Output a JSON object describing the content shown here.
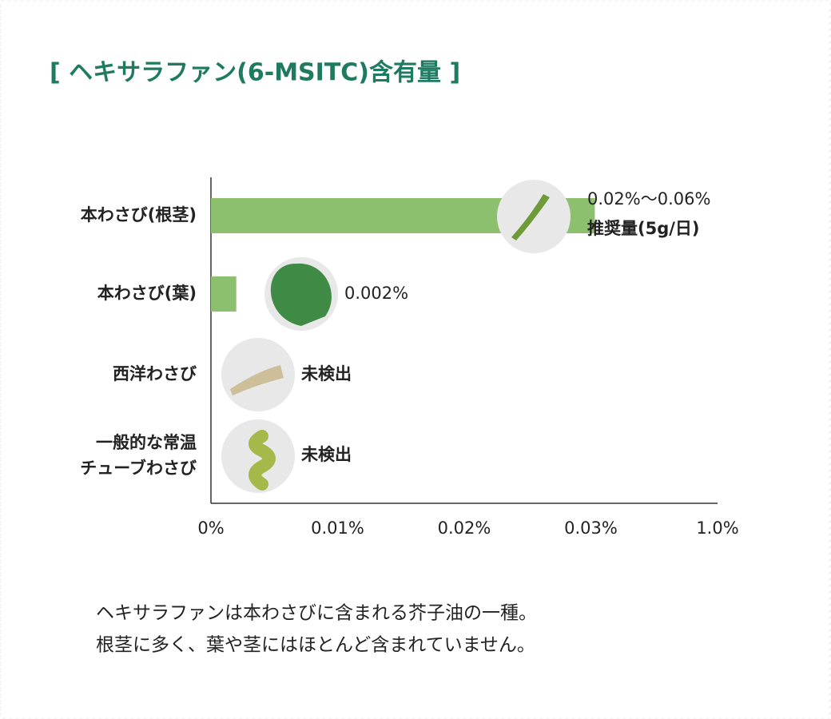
{
  "chart_data": {
    "type": "bar",
    "orientation": "horizontal",
    "title": "[ ヘキサラファン(6-MSITC)含有量 ]",
    "categories": [
      "本わさび(根茎)",
      "本わさび(葉)",
      "西洋わさび",
      [
        "一般的な常温",
        "チューブわさび"
      ]
    ],
    "values": [
      0.06,
      0.002,
      0,
      0
    ],
    "value_labels": [
      [
        "0.02%〜0.06%",
        "推奨量(5g/日)"
      ],
      "0.002%",
      "未検出",
      "未検出"
    ],
    "color": "#8cbf6e",
    "xlim": [
      0,
      1.0
    ],
    "xticks": [
      {
        "value": 0,
        "label": "0%"
      },
      {
        "value": 0.01,
        "label": "0.01%"
      },
      {
        "value": 0.02,
        "label": "0.02%"
      },
      {
        "value": 0.03,
        "label": "0.03%"
      },
      {
        "value": 1.0,
        "label": "1.0%"
      }
    ],
    "note": [
      "ヘキサラファンは本わさびに含まれる芥子油の一種。",
      "根茎に多く、葉や茎にはほとんど含まれていません。"
    ]
  }
}
